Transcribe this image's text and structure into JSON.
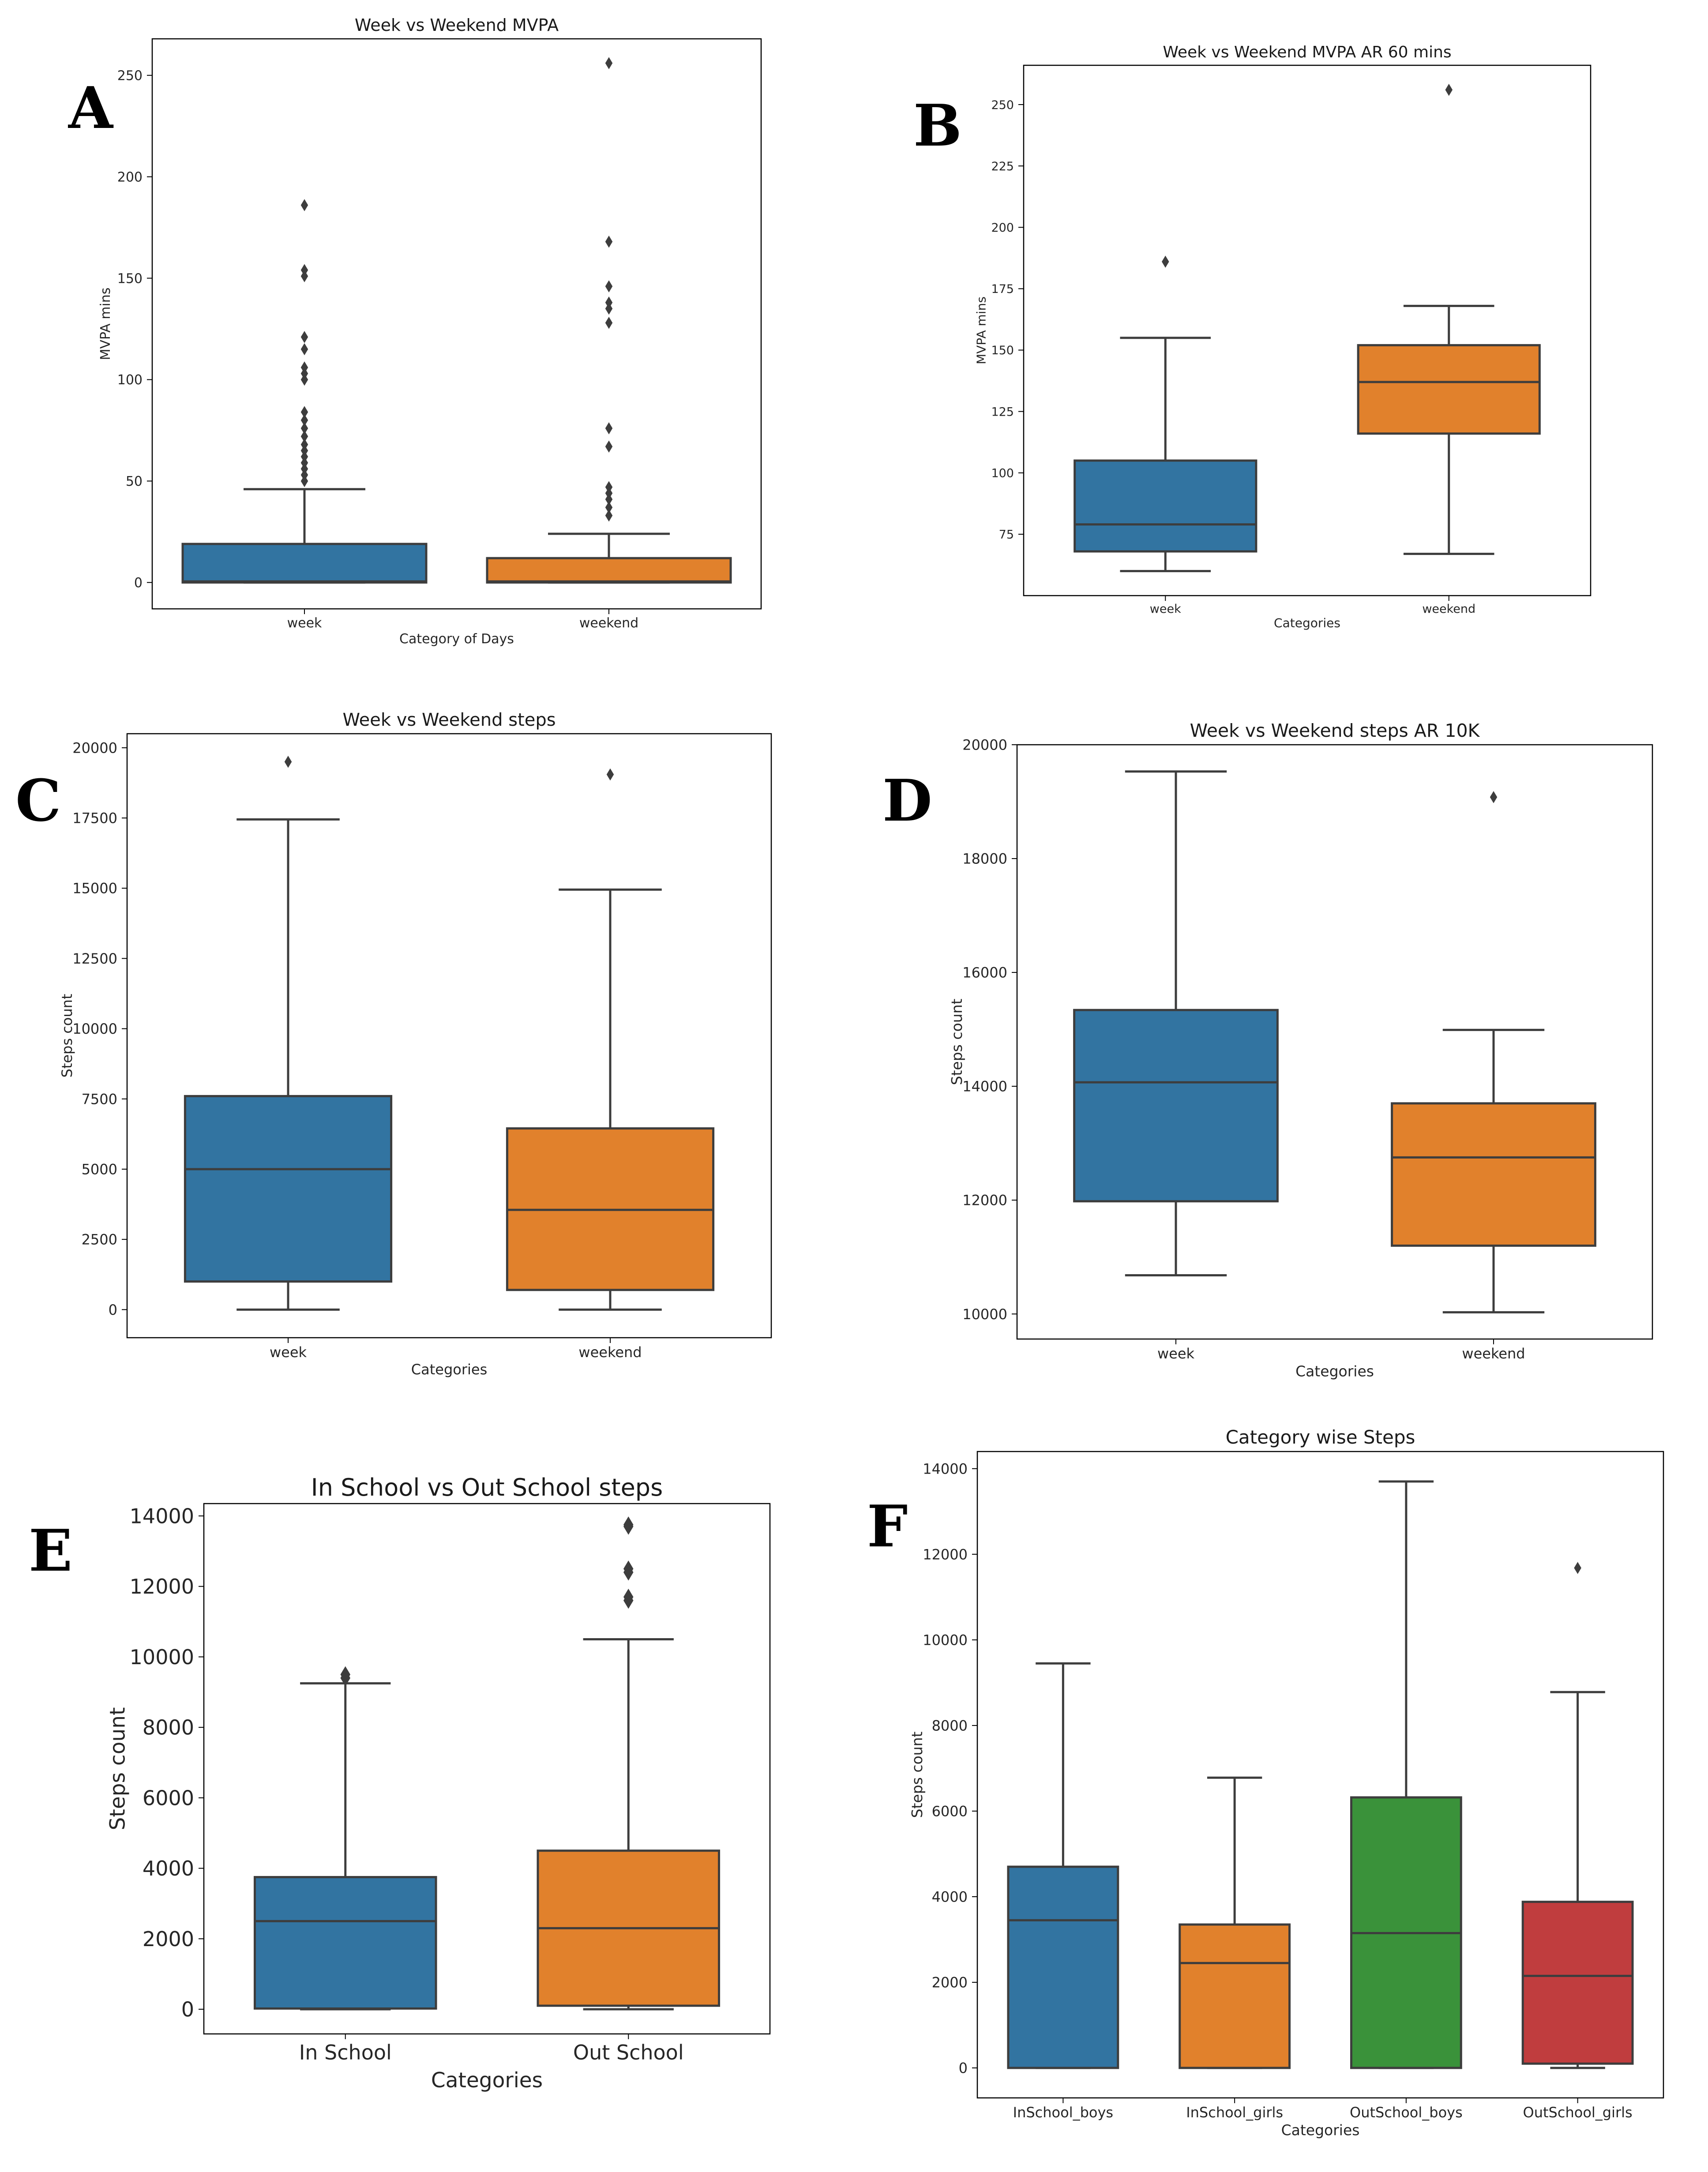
{
  "chart_data": [
    {
      "panel": "A",
      "type": "box",
      "title": "Week vs Weekend MVPA",
      "xlabel": "Category of Days",
      "ylabel": "MVPA mins",
      "ylim": [
        -13,
        268
      ],
      "yticks": [
        0,
        50,
        100,
        150,
        200,
        250
      ],
      "grid": false,
      "series": [
        {
          "name": "week",
          "color": "#3274a1",
          "q1": 0,
          "median": 0.5,
          "q3": 19,
          "whisker_low": 0,
          "whisker_high": 46,
          "outliers": [
            50,
            53,
            56,
            59,
            62,
            65,
            68,
            72,
            76,
            80,
            84,
            100,
            103,
            106,
            115,
            121,
            151,
            154,
            186
          ]
        },
        {
          "name": "weekend",
          "color": "#e1812c",
          "q1": 0,
          "median": 0.5,
          "q3": 12,
          "whisker_low": 0,
          "whisker_high": 24,
          "outliers": [
            33,
            37,
            41,
            44,
            47,
            67,
            76,
            128,
            135,
            138,
            146,
            168,
            256
          ]
        }
      ]
    },
    {
      "panel": "B",
      "type": "box",
      "title": "Week vs Weekend MVPA AR 60 mins",
      "xlabel": "Categories",
      "ylabel": "MVPA mins",
      "ylim": [
        50,
        266
      ],
      "yticks": [
        75,
        100,
        125,
        150,
        175,
        200,
        225,
        250
      ],
      "grid": false,
      "series": [
        {
          "name": "week",
          "color": "#3274a1",
          "q1": 68,
          "median": 79,
          "q3": 105,
          "whisker_low": 60,
          "whisker_high": 155,
          "outliers": [
            186
          ]
        },
        {
          "name": "weekend",
          "color": "#e1812c",
          "q1": 116,
          "median": 137,
          "q3": 152,
          "whisker_low": 67,
          "whisker_high": 168,
          "outliers": [
            256
          ]
        }
      ]
    },
    {
      "panel": "C",
      "type": "box",
      "title": "Week vs Weekend steps",
      "xlabel": "Categories",
      "ylabel": "Steps count",
      "ylim": [
        -1000,
        20500
      ],
      "yticks": [
        0,
        2500,
        5000,
        7500,
        10000,
        12500,
        15000,
        17500,
        20000
      ],
      "grid": false,
      "series": [
        {
          "name": "week",
          "color": "#3274a1",
          "q1": 1000,
          "median": 5000,
          "q3": 7600,
          "whisker_low": 0,
          "whisker_high": 17450,
          "outliers": [
            19500
          ]
        },
        {
          "name": "weekend",
          "color": "#e1812c",
          "q1": 700,
          "median": 3550,
          "q3": 6450,
          "whisker_low": 0,
          "whisker_high": 14950,
          "outliers": [
            19050
          ]
        }
      ]
    },
    {
      "panel": "D",
      "type": "box",
      "title": "Week vs Weekend steps AR 10K",
      "xlabel": "Categories",
      "ylabel": "Steps count",
      "ylim": [
        9560,
        20000
      ],
      "yticks": [
        10000,
        12000,
        14000,
        16000,
        18000,
        20000
      ],
      "grid": false,
      "series": [
        {
          "name": "week",
          "color": "#3274a1",
          "q1": 11980,
          "median": 14070,
          "q3": 15340,
          "whisker_low": 10680,
          "whisker_high": 19530,
          "outliers": []
        },
        {
          "name": "weekend",
          "color": "#e1812c",
          "q1": 11200,
          "median": 12750,
          "q3": 13700,
          "whisker_low": 10030,
          "whisker_high": 14990,
          "outliers": [
            19080
          ]
        }
      ]
    },
    {
      "panel": "E",
      "type": "box",
      "title": "In School vs Out School steps",
      "xlabel": "Categories",
      "ylabel": "Steps count",
      "ylim": [
        -700,
        14350
      ],
      "yticks": [
        0,
        2000,
        4000,
        6000,
        8000,
        10000,
        12000,
        14000
      ],
      "grid": false,
      "series": [
        {
          "name": "In School",
          "color": "#3274a1",
          "q1": 20,
          "median": 2500,
          "q3": 3750,
          "whisker_low": 0,
          "whisker_high": 9250,
          "outliers": [
            9400,
            9500
          ]
        },
        {
          "name": "Out School",
          "color": "#e1812c",
          "q1": 100,
          "median": 2300,
          "q3": 4500,
          "whisker_low": 0,
          "whisker_high": 10500,
          "outliers": [
            11600,
            11700,
            12400,
            12500,
            13700,
            13750
          ]
        }
      ]
    },
    {
      "panel": "F",
      "type": "box",
      "title": "Category wise Steps",
      "xlabel": "Categories",
      "ylabel": "Steps count",
      "ylim": [
        -700,
        14400
      ],
      "yticks": [
        0,
        2000,
        4000,
        6000,
        8000,
        10000,
        12000,
        14000
      ],
      "grid": false,
      "series": [
        {
          "name": "InSchool_boys",
          "color": "#3274a1",
          "q1": 0,
          "median": 3450,
          "q3": 4700,
          "whisker_low": 0,
          "whisker_high": 9450,
          "outliers": []
        },
        {
          "name": "InSchool_girls",
          "color": "#e1812c",
          "q1": 0,
          "median": 2450,
          "q3": 3350,
          "whisker_low": 0,
          "whisker_high": 6780,
          "outliers": []
        },
        {
          "name": "OutSchool_boys",
          "color": "#3a923a",
          "q1": 0,
          "median": 3150,
          "q3": 6320,
          "whisker_low": 0,
          "whisker_high": 13700,
          "outliers": []
        },
        {
          "name": "OutSchool_girls",
          "color": "#c03d3e",
          "q1": 100,
          "median": 2150,
          "q3": 3880,
          "whisker_low": 0,
          "whisker_high": 8780,
          "outliers": [
            11680
          ]
        }
      ]
    }
  ]
}
